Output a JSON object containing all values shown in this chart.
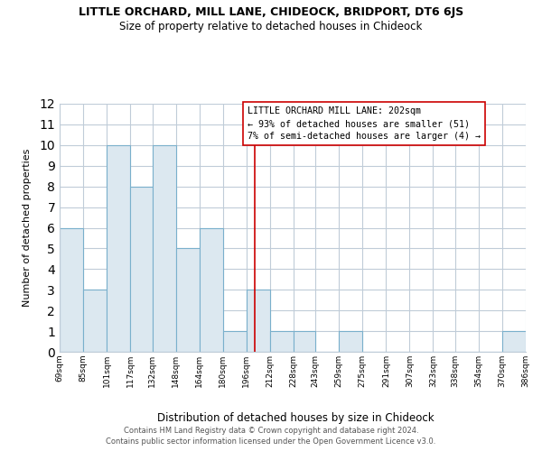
{
  "title": "LITTLE ORCHARD, MILL LANE, CHIDEOCK, BRIDPORT, DT6 6JS",
  "subtitle": "Size of property relative to detached houses in Chideock",
  "xlabel": "Distribution of detached houses by size in Chideock",
  "ylabel": "Number of detached properties",
  "bar_color": "#dce8f0",
  "bar_edge_color": "#7ab0cc",
  "grid_color": "#c0ccd8",
  "marker_line_color": "#cc0000",
  "marker_value": 202,
  "annotation_title": "LITTLE ORCHARD MILL LANE: 202sqm",
  "annotation_line1": "← 93% of detached houses are smaller (51)",
  "annotation_line2": "7% of semi-detached houses are larger (4) →",
  "bin_edges": [
    69,
    85,
    101,
    117,
    132,
    148,
    164,
    180,
    196,
    212,
    228,
    243,
    259,
    275,
    291,
    307,
    323,
    338,
    354,
    370,
    386
  ],
  "bin_labels": [
    "69sqm",
    "85sqm",
    "101sqm",
    "117sqm",
    "132sqm",
    "148sqm",
    "164sqm",
    "180sqm",
    "196sqm",
    "212sqm",
    "228sqm",
    "243sqm",
    "259sqm",
    "275sqm",
    "291sqm",
    "307sqm",
    "323sqm",
    "338sqm",
    "354sqm",
    "370sqm",
    "386sqm"
  ],
  "counts": [
    6,
    3,
    10,
    8,
    10,
    5,
    6,
    1,
    3,
    1,
    1,
    0,
    1,
    0,
    0,
    0,
    0,
    0,
    0,
    1
  ],
  "ylim": [
    0,
    12
  ],
  "yticks": [
    0,
    1,
    2,
    3,
    4,
    5,
    6,
    7,
    8,
    9,
    10,
    11,
    12
  ],
  "footnote1": "Contains HM Land Registry data © Crown copyright and database right 2024.",
  "footnote2": "Contains public sector information licensed under the Open Government Licence v3.0.",
  "background_color": "#ffffff"
}
